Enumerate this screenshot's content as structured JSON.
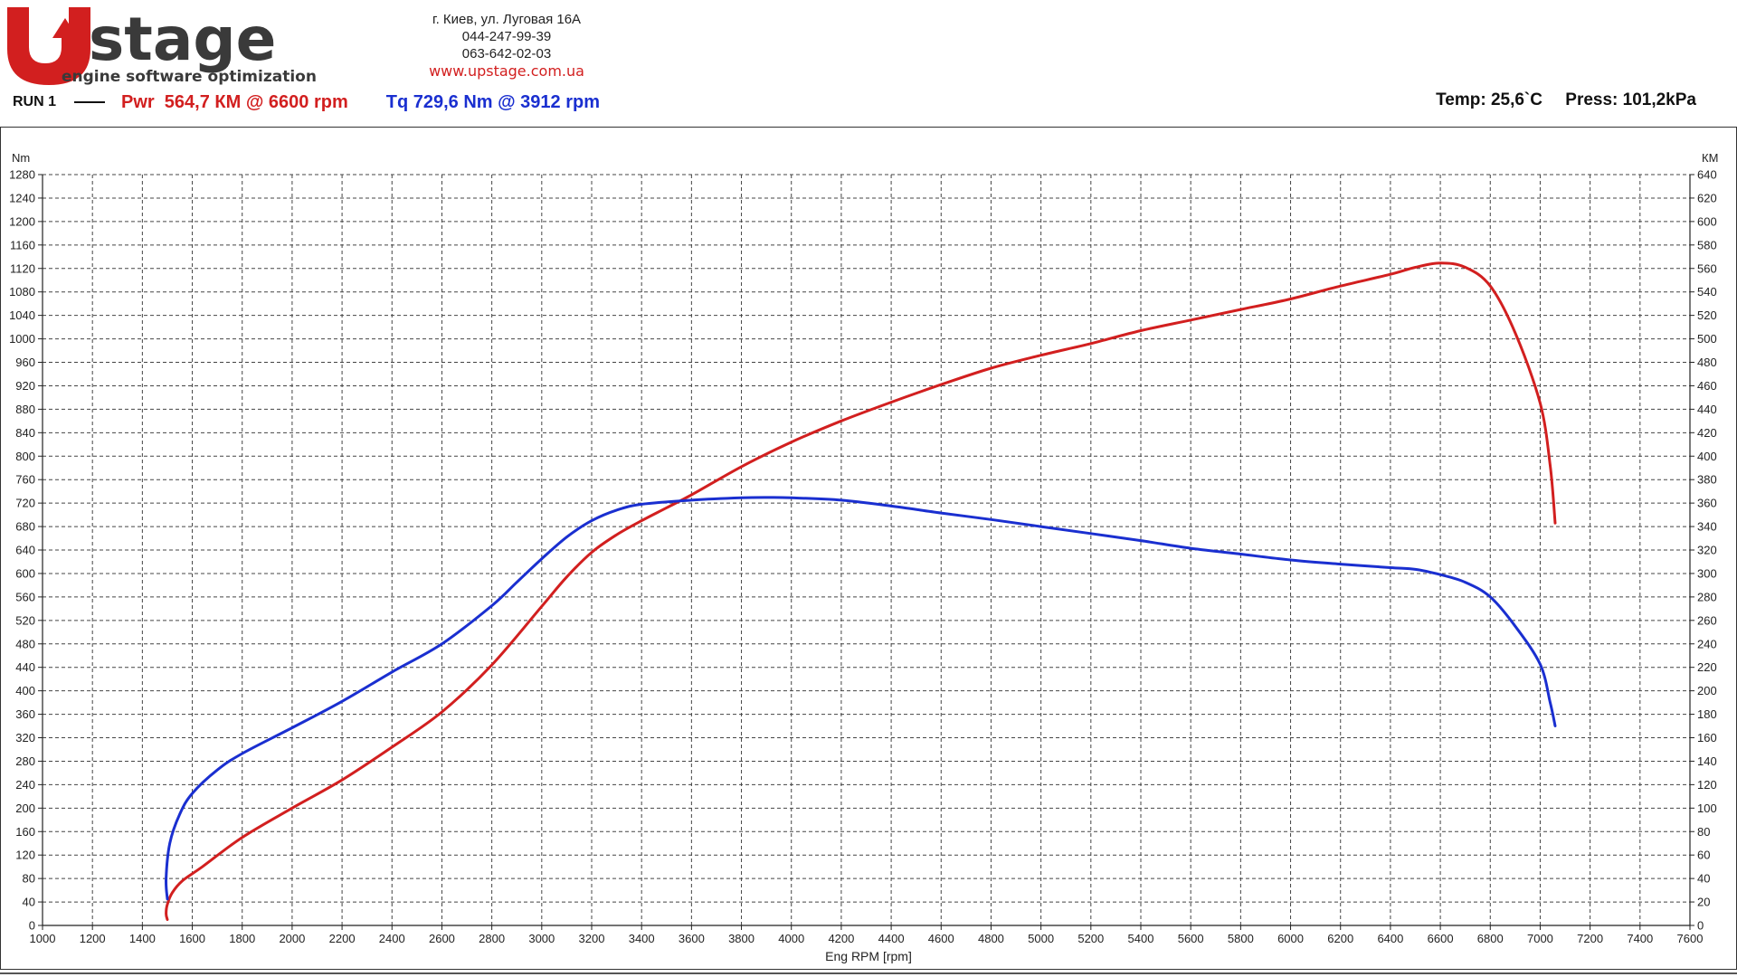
{
  "header": {
    "logo": {
      "brand_u": "U",
      "brand_word": "stage",
      "tagline": "engine software optimization"
    },
    "address": {
      "street": "г. Киев, ул. Луговая 16А",
      "phone1": "044-247-99-39",
      "phone2": "063-642-02-03",
      "website": "www.upstage.com.ua"
    },
    "run_label": "RUN 1",
    "power_summary": "Pwr  564,7 КМ @ 6600 rpm",
    "torque_summary": "Tq 729,6 Nm @ 3912 rpm",
    "temp": "Temp: 25,6`C",
    "press": "Press: 101,2kPa"
  },
  "colors": {
    "power": "#d21f1f",
    "torque": "#1a2fd0",
    "grid": "#444444",
    "logo_red": "#d21f1f",
    "logo_dark": "#3a3a3a"
  },
  "chart_data": {
    "type": "line",
    "title": "",
    "xlabel": "Eng RPM [rpm]",
    "ylabel_left": "Nm",
    "ylabel_right": "КМ",
    "xlim": [
      1000,
      7600
    ],
    "ylim_left": [
      0,
      1280
    ],
    "ylim_right": [
      0,
      640
    ],
    "x_ticks": [
      1000,
      1200,
      1400,
      1600,
      1800,
      2000,
      2200,
      2400,
      2600,
      2800,
      3000,
      3200,
      3400,
      3600,
      3800,
      4000,
      4200,
      4400,
      4600,
      4800,
      5000,
      5200,
      5400,
      5600,
      5800,
      6000,
      6200,
      6400,
      6600,
      6800,
      7000,
      7200,
      7400,
      7600
    ],
    "y_left_ticks": [
      0,
      40,
      80,
      120,
      160,
      200,
      240,
      280,
      320,
      360,
      400,
      440,
      480,
      520,
      560,
      600,
      640,
      680,
      720,
      760,
      800,
      840,
      880,
      920,
      960,
      1000,
      1040,
      1080,
      1120,
      1160,
      1200,
      1240,
      1280
    ],
    "y_right_ticks": [
      0,
      20,
      40,
      60,
      80,
      100,
      120,
      140,
      160,
      180,
      200,
      220,
      240,
      260,
      280,
      300,
      320,
      340,
      360,
      380,
      400,
      420,
      440,
      460,
      480,
      500,
      520,
      540,
      560,
      580,
      600,
      620,
      640
    ],
    "grid": true,
    "series": [
      {
        "name": "Pwr",
        "axis": "right",
        "color": "#d21f1f",
        "points": [
          [
            1500,
            5
          ],
          [
            1495,
            10
          ],
          [
            1500,
            18
          ],
          [
            1520,
            28
          ],
          [
            1560,
            38
          ],
          [
            1640,
            50
          ],
          [
            1800,
            75
          ],
          [
            2000,
            100
          ],
          [
            2200,
            124
          ],
          [
            2400,
            152
          ],
          [
            2600,
            182
          ],
          [
            2800,
            222
          ],
          [
            3000,
            272
          ],
          [
            3100,
            297
          ],
          [
            3200,
            318
          ],
          [
            3300,
            333
          ],
          [
            3400,
            345
          ],
          [
            3500,
            356
          ],
          [
            3600,
            367
          ],
          [
            3800,
            391
          ],
          [
            4000,
            412
          ],
          [
            4200,
            430
          ],
          [
            4400,
            446
          ],
          [
            4600,
            461
          ],
          [
            4800,
            475
          ],
          [
            5000,
            486
          ],
          [
            5200,
            496
          ],
          [
            5400,
            507
          ],
          [
            5600,
            516
          ],
          [
            5800,
            525
          ],
          [
            6000,
            534
          ],
          [
            6200,
            545
          ],
          [
            6400,
            555
          ],
          [
            6500,
            561
          ],
          [
            6600,
            564.7
          ],
          [
            6700,
            561
          ],
          [
            6800,
            545
          ],
          [
            6900,
            505
          ],
          [
            7000,
            445
          ],
          [
            7040,
            392
          ],
          [
            7060,
            343
          ]
        ]
      },
      {
        "name": "Tq",
        "axis": "left",
        "color": "#1a2fd0",
        "points": [
          [
            1500,
            45
          ],
          [
            1495,
            80
          ],
          [
            1510,
            140
          ],
          [
            1550,
            190
          ],
          [
            1600,
            225
          ],
          [
            1700,
            265
          ],
          [
            1800,
            293
          ],
          [
            2000,
            337
          ],
          [
            2200,
            382
          ],
          [
            2400,
            432
          ],
          [
            2600,
            480
          ],
          [
            2800,
            545
          ],
          [
            2900,
            585
          ],
          [
            3000,
            625
          ],
          [
            3100,
            662
          ],
          [
            3200,
            690
          ],
          [
            3300,
            708
          ],
          [
            3400,
            718
          ],
          [
            3600,
            725
          ],
          [
            3800,
            729
          ],
          [
            3912,
            729.6
          ],
          [
            4000,
            729
          ],
          [
            4200,
            725
          ],
          [
            4400,
            715
          ],
          [
            4600,
            703
          ],
          [
            4800,
            692
          ],
          [
            5000,
            680
          ],
          [
            5200,
            668
          ],
          [
            5400,
            656
          ],
          [
            5600,
            643
          ],
          [
            5800,
            633
          ],
          [
            6000,
            623
          ],
          [
            6200,
            616
          ],
          [
            6400,
            610
          ],
          [
            6500,
            607
          ],
          [
            6600,
            598
          ],
          [
            6700,
            585
          ],
          [
            6800,
            560
          ],
          [
            6900,
            510
          ],
          [
            7000,
            445
          ],
          [
            7040,
            380
          ],
          [
            7060,
            340
          ]
        ]
      }
    ]
  }
}
